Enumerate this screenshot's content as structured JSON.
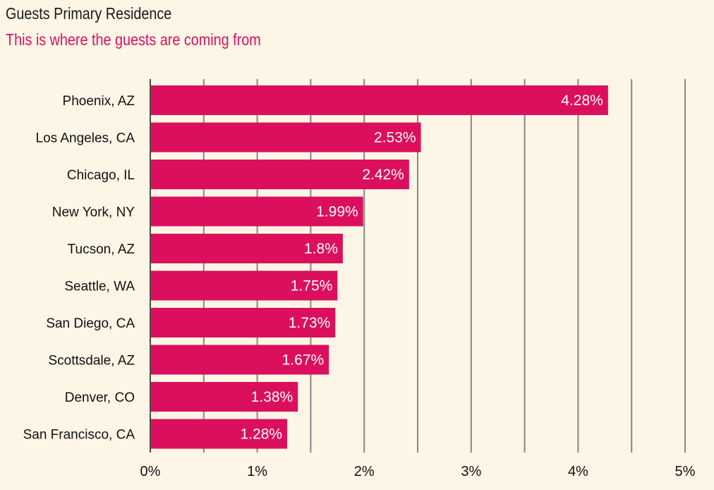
{
  "header": {
    "title": "Guests Primary Residence",
    "subtitle": "This is where the guests are coming from"
  },
  "colors": {
    "background": "#fdf5e6",
    "bar": "#dc0f5e",
    "subtitle": "#dc0f5e",
    "grid": "#8a8684"
  },
  "chart_data": {
    "type": "bar",
    "orientation": "horizontal",
    "title": "Guests Primary Residence",
    "subtitle": "This is where the guests are coming from",
    "categories": [
      "Phoenix, AZ",
      "Los Angeles, CA",
      "Chicago, IL",
      "New York, NY",
      "Tucson, AZ",
      "Seattle, WA",
      "San Diego, CA",
      "Scottsdale, AZ",
      "Denver, CO",
      "San Francisco, CA"
    ],
    "values": [
      4.28,
      2.53,
      2.42,
      1.99,
      1.8,
      1.75,
      1.73,
      1.67,
      1.38,
      1.28
    ],
    "value_labels": [
      "4.28%",
      "2.53%",
      "2.42%",
      "1.99%",
      "1.8%",
      "1.75%",
      "1.73%",
      "1.67%",
      "1.38%",
      "1.28%"
    ],
    "x_ticks": [
      "0%",
      "1%",
      "2%",
      "3%",
      "4%",
      "5%"
    ],
    "xlim": [
      0,
      5
    ],
    "grid": true,
    "legend": "none"
  }
}
